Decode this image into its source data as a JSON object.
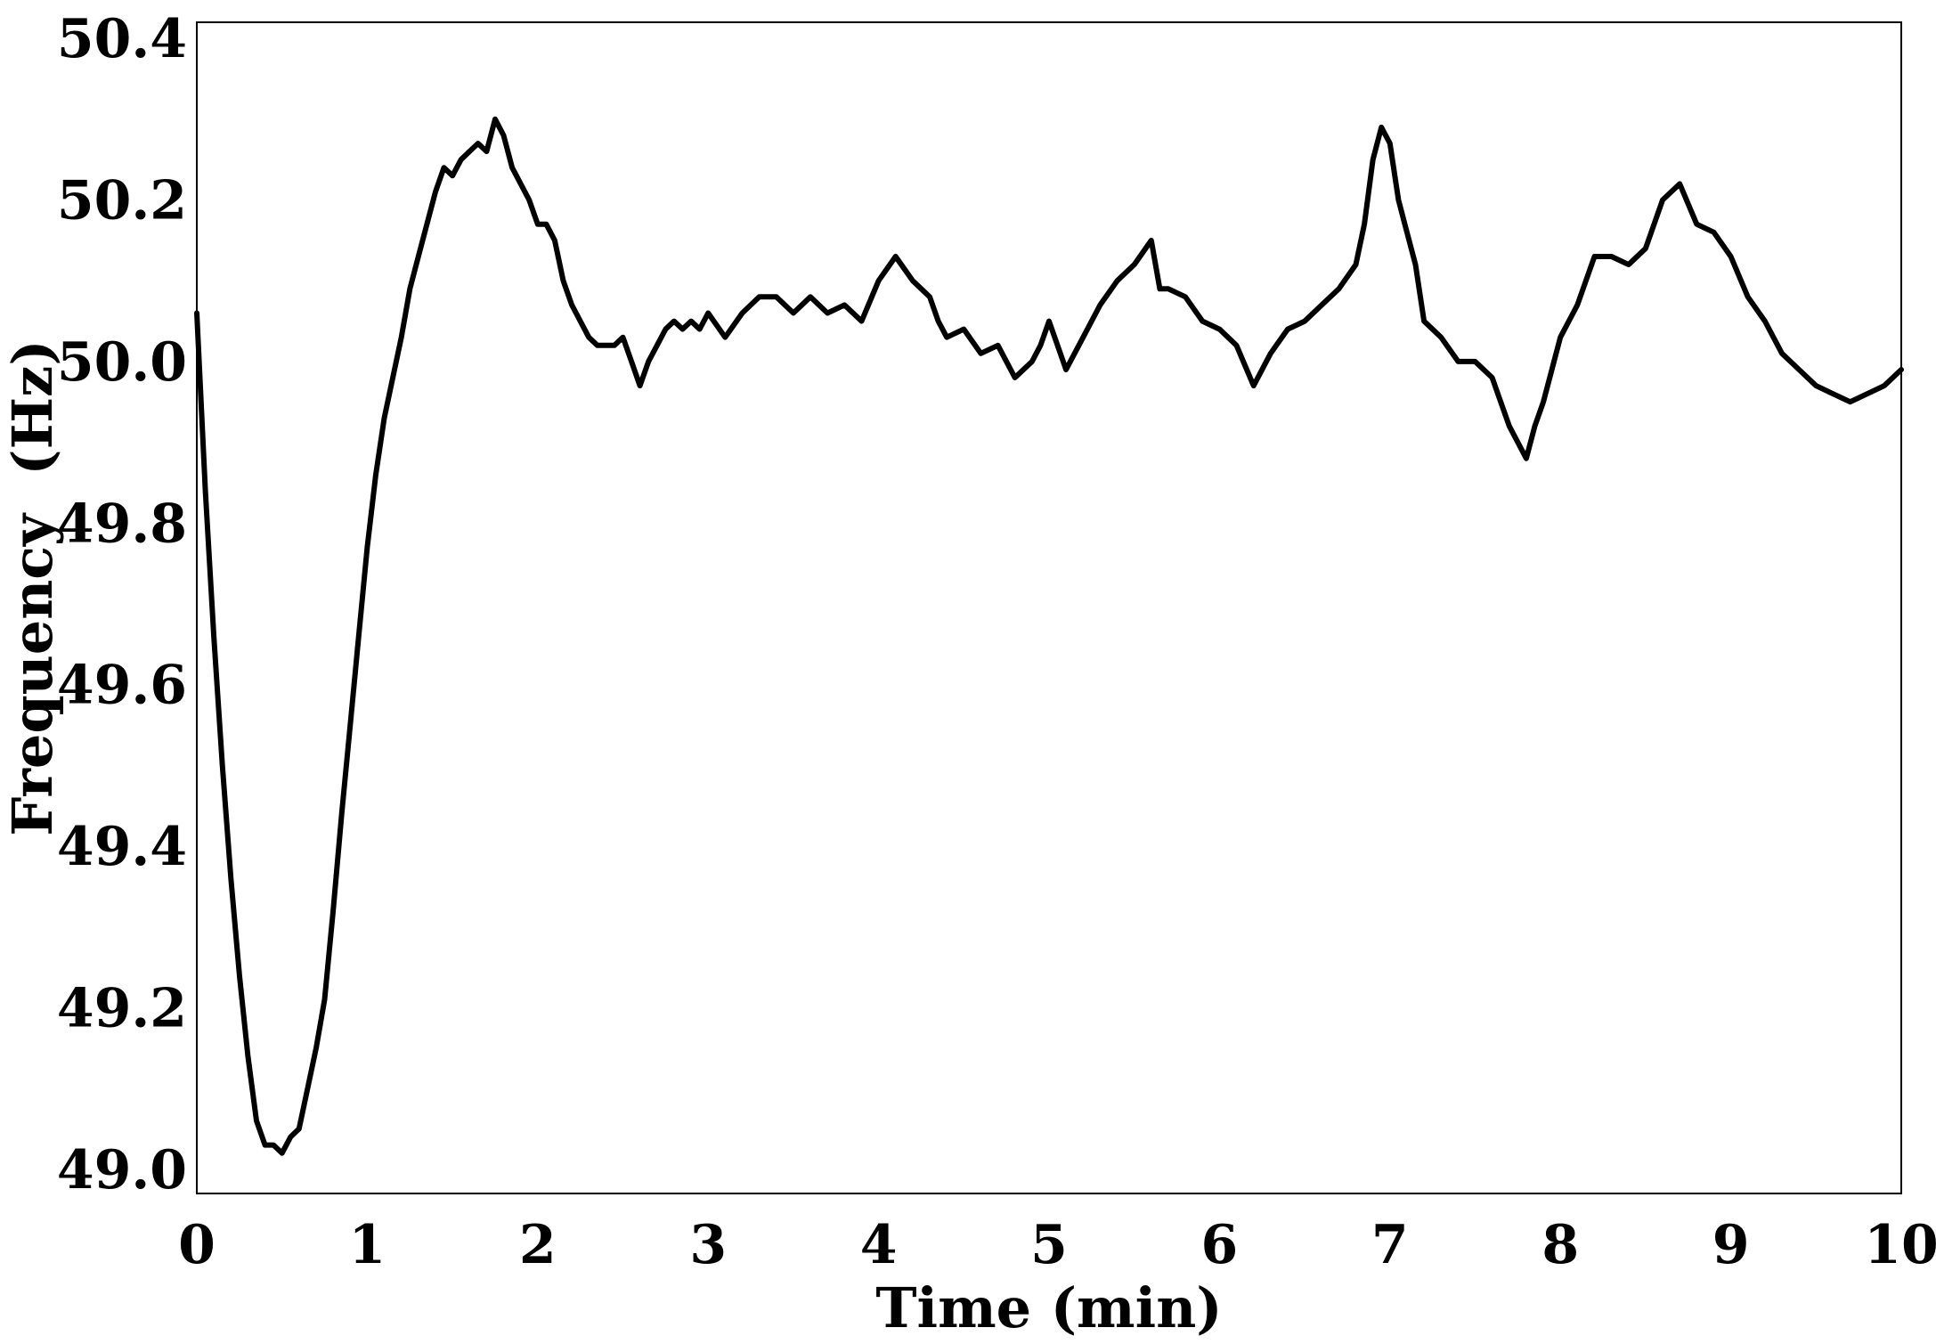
{
  "chart_data": {
    "type": "line",
    "title": "",
    "xlabel": "Time (min)",
    "ylabel": "Frequency  (Hz)",
    "xlim": [
      0,
      10
    ],
    "ylim": [
      48.97,
      50.42
    ],
    "x_ticks": [
      "0",
      "1",
      "2",
      "3",
      "4",
      "5",
      "6",
      "7",
      "8",
      "9",
      "10"
    ],
    "y_ticks": [
      "49.0",
      "49.2",
      "49.4",
      "49.6",
      "49.8",
      "50.0",
      "50.2",
      "50.4"
    ],
    "grid": false,
    "legend": "none",
    "line_color": "#000000",
    "series": [
      {
        "x": [
          0.0,
          0.05,
          0.1,
          0.15,
          0.2,
          0.25,
          0.3,
          0.35,
          0.4,
          0.45,
          0.5,
          0.55,
          0.6,
          0.65,
          0.7,
          0.75,
          0.8,
          0.85,
          0.9,
          0.95,
          1.0,
          1.05,
          1.1,
          1.15,
          1.2,
          1.25,
          1.3,
          1.35,
          1.4,
          1.45,
          1.5,
          1.55,
          1.6,
          1.65,
          1.7,
          1.75,
          1.8,
          1.85,
          1.9,
          1.95,
          2.0,
          2.05,
          2.1,
          2.15,
          2.2,
          2.25,
          2.3,
          2.35,
          2.4,
          2.45,
          2.5,
          2.55,
          2.6,
          2.65,
          2.7,
          2.75,
          2.8,
          2.85,
          2.9,
          2.95,
          3.0,
          3.1,
          3.2,
          3.3,
          3.4,
          3.5,
          3.6,
          3.7,
          3.8,
          3.9,
          4.0,
          4.1,
          4.2,
          4.3,
          4.35,
          4.4,
          4.5,
          4.6,
          4.7,
          4.8,
          4.9,
          4.95,
          5.0,
          5.1,
          5.15,
          5.2,
          5.3,
          5.4,
          5.5,
          5.6,
          5.65,
          5.7,
          5.8,
          5.9,
          6.0,
          6.1,
          6.2,
          6.3,
          6.4,
          6.5,
          6.6,
          6.7,
          6.8,
          6.85,
          6.9,
          6.95,
          7.0,
          7.05,
          7.1,
          7.15,
          7.2,
          7.3,
          7.4,
          7.5,
          7.6,
          7.65,
          7.7,
          7.75,
          7.8,
          7.85,
          7.9,
          8.0,
          8.1,
          8.2,
          8.3,
          8.4,
          8.5,
          8.6,
          8.7,
          8.8,
          8.9,
          9.0,
          9.1,
          9.2,
          9.3,
          9.4,
          9.5,
          9.6,
          9.7,
          9.8,
          9.9,
          10.0
        ],
        "y": [
          50.06,
          49.84,
          49.66,
          49.5,
          49.36,
          49.24,
          49.14,
          49.06,
          49.03,
          49.03,
          49.02,
          49.04,
          49.05,
          49.1,
          49.15,
          49.21,
          49.32,
          49.44,
          49.55,
          49.66,
          49.77,
          49.86,
          49.93,
          49.98,
          50.03,
          50.09,
          50.13,
          50.17,
          50.21,
          50.24,
          50.23,
          50.25,
          50.26,
          50.27,
          50.26,
          50.3,
          50.28,
          50.24,
          50.22,
          50.2,
          50.17,
          50.17,
          50.15,
          50.1,
          50.07,
          50.05,
          50.03,
          50.02,
          50.02,
          50.02,
          50.03,
          50.0,
          49.97,
          50.0,
          50.02,
          50.04,
          50.05,
          50.04,
          50.05,
          50.04,
          50.06,
          50.03,
          50.06,
          50.08,
          50.08,
          50.06,
          50.08,
          50.06,
          50.07,
          50.05,
          50.1,
          50.13,
          50.1,
          50.08,
          50.05,
          50.03,
          50.04,
          50.01,
          50.02,
          49.98,
          50.0,
          50.02,
          50.05,
          49.99,
          50.01,
          50.03,
          50.07,
          50.1,
          50.12,
          50.15,
          50.09,
          50.09,
          50.08,
          50.05,
          50.04,
          50.02,
          49.97,
          50.01,
          50.04,
          50.05,
          50.07,
          50.09,
          50.12,
          50.17,
          50.25,
          50.29,
          50.27,
          50.2,
          50.16,
          50.12,
          50.05,
          50.03,
          50.0,
          50.0,
          49.98,
          49.95,
          49.92,
          49.9,
          49.88,
          49.92,
          49.95,
          50.03,
          50.07,
          50.13,
          50.13,
          50.12,
          50.14,
          50.2,
          50.22,
          50.17,
          50.16,
          50.13,
          50.08,
          50.05,
          50.01,
          49.99,
          49.97,
          49.96,
          49.95,
          49.96,
          49.97,
          49.99
        ]
      }
    ]
  }
}
